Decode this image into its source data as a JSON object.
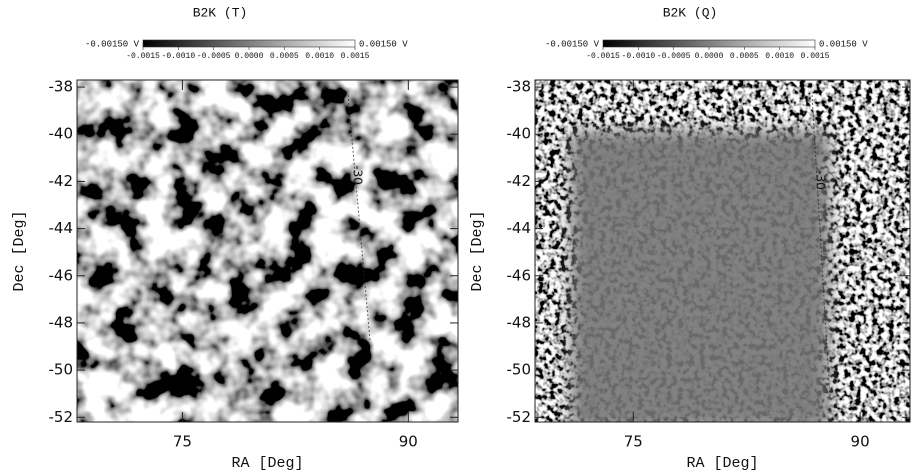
{
  "chart_data": [
    {
      "type": "image",
      "title": "B2K (T)",
      "xlabel": "RA [Deg]",
      "ylabel": "Dec [Deg]",
      "xlim": [
        68,
        93.3
      ],
      "xticks": [
        75,
        90
      ],
      "ylim": [
        -52.2,
        -37.7
      ],
      "yticks": [
        -38,
        -40,
        -42,
        -44,
        -46,
        -48,
        -50,
        -52
      ],
      "colormap": [
        "#000000",
        "#ffffff"
      ],
      "clim": [
        -0.0015,
        0.0015
      ],
      "clim_labels": [
        "-0.00150 V",
        "0.00150 V"
      ],
      "cticks": [
        {
          "value": -0.0015,
          "label": "-0.0015"
        },
        {
          "value": -0.001,
          "label": "-0.0010"
        },
        {
          "value": -0.0005,
          "label": "-0.0005"
        },
        {
          "value": 0,
          "label": "0.0000"
        },
        {
          "value": 0.0005,
          "label": "0.0005"
        },
        {
          "value": 0.001,
          "label": "0.0010"
        },
        {
          "value": 0.0015,
          "label": "0.0015"
        }
      ],
      "annotation": "-30"
    },
    {
      "type": "image",
      "title": "B2K (Q)",
      "xlabel": "RA [Deg]",
      "ylabel": "Dec [Deg]",
      "xlim": [
        68.5,
        93.3
      ],
      "xticks": [
        75,
        90
      ],
      "ylim": [
        -52.2,
        -37.7
      ],
      "yticks": [
        -38,
        -40,
        -42,
        -44,
        -46,
        -48,
        -50,
        -52
      ],
      "colormap": [
        "#000000",
        "#ffffff"
      ],
      "clim": [
        -0.0015,
        0.0015
      ],
      "clim_labels": [
        "-0.00150 V",
        "0.00150 V"
      ],
      "cticks": [
        {
          "value": -0.0015,
          "label": "-0.0015"
        },
        {
          "value": -0.001,
          "label": "-0.0010"
        },
        {
          "value": -0.0005,
          "label": "-0.0005"
        },
        {
          "value": 0,
          "label": "0.0000"
        },
        {
          "value": 0.0005,
          "label": "0.0005"
        },
        {
          "value": 0.001,
          "label": "0.0010"
        },
        {
          "value": 0.0015,
          "label": "0.0015"
        }
      ],
      "annotation": "-30"
    }
  ]
}
